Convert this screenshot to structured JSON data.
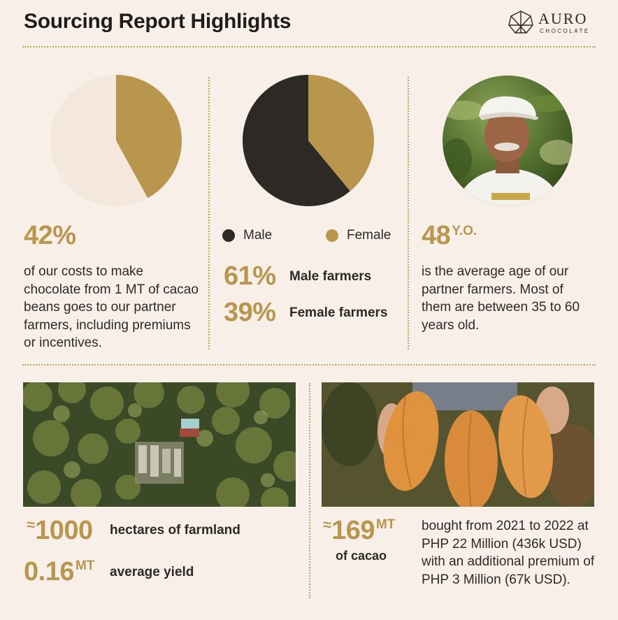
{
  "header": {
    "title": "Sourcing Report Highlights",
    "logo_word": "AURO",
    "logo_sub": "CHOCOLATE"
  },
  "colors": {
    "gold": "#b8964e",
    "dark": "#2d2a26",
    "cream": "#f3e8db",
    "background": "#f8efe9"
  },
  "cost_share": {
    "value": "42%",
    "description": "of our costs to make chocolate from 1 MT of cacao beans goes to our partner farmers, including premiums or incentives."
  },
  "gender": {
    "legend_male": "Male",
    "legend_female": "Female",
    "male_pct": "61%",
    "male_label": "Male farmers",
    "female_pct": "39%",
    "female_label": "Female farmers"
  },
  "age": {
    "value": "48",
    "unit": "Y.O.",
    "description": "is the average age of our partner farmers. Most of them are between 35 to 60 years old."
  },
  "farmland": {
    "approx": "≈",
    "hectares": "1000",
    "hectares_label": "hectares of farmland",
    "yield_value": "0.16",
    "yield_unit": "MT",
    "yield_label": "average yield"
  },
  "cacao": {
    "approx": "≈",
    "amount": "169",
    "unit": "MT",
    "sub": "of cacao",
    "description": "bought from 2021 to 2022 at PHP 22 Million (436k USD) with an additional premium of PHP 3 Million (67k USD)."
  },
  "chart_data": [
    {
      "type": "pie",
      "values": [
        42,
        58
      ],
      "colors": [
        "#b8964e",
        "#f3e8db"
      ]
    },
    {
      "type": "pie",
      "categories": [
        "Male",
        "Female"
      ],
      "values": [
        61,
        39
      ],
      "colors": [
        "#2d2a26",
        "#b8964e"
      ]
    }
  ]
}
